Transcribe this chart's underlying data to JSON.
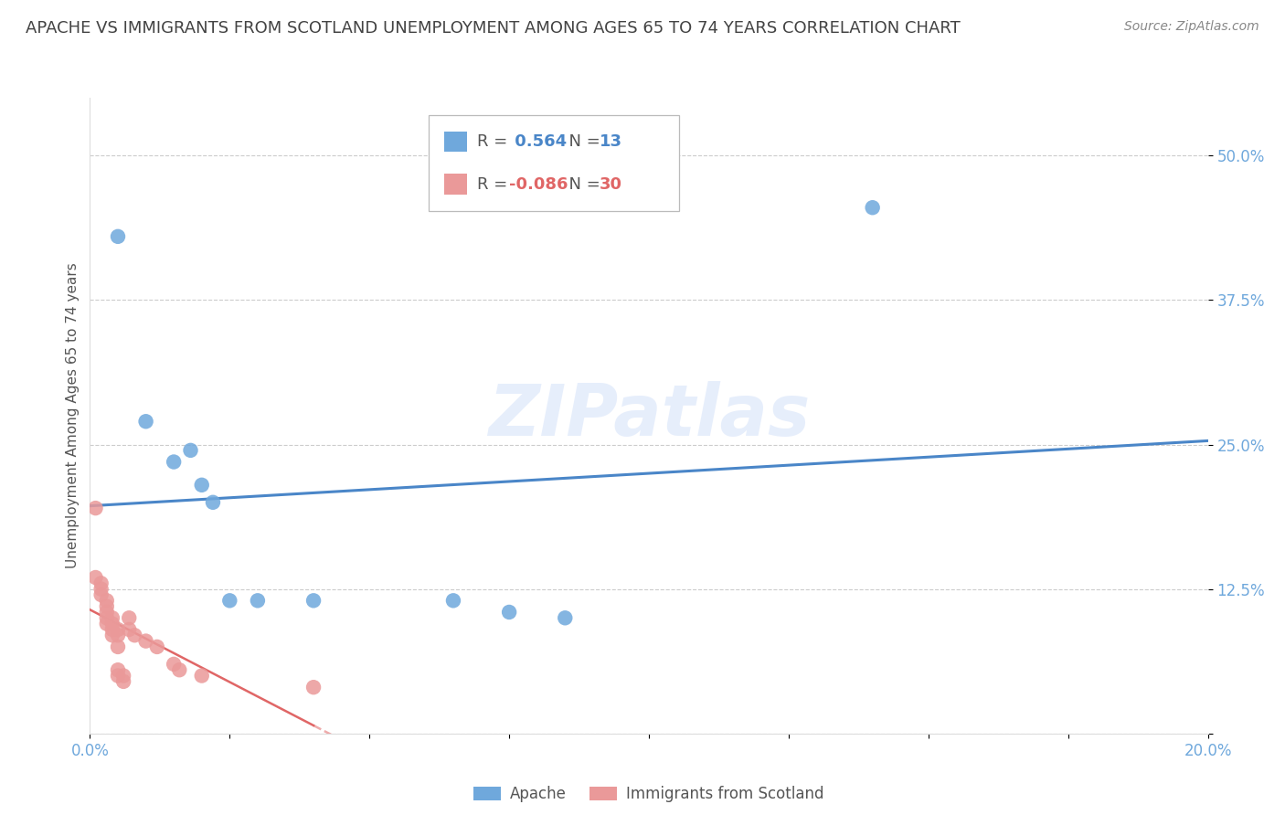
{
  "title": "APACHE VS IMMIGRANTS FROM SCOTLAND UNEMPLOYMENT AMONG AGES 65 TO 74 YEARS CORRELATION CHART",
  "source": "Source: ZipAtlas.com",
  "ylabel": "Unemployment Among Ages 65 to 74 years",
  "watermark": "ZIPatlas",
  "xlim": [
    0.0,
    0.2
  ],
  "ylim": [
    0.0,
    0.55
  ],
  "xticks": [
    0.0,
    0.025,
    0.05,
    0.075,
    0.1,
    0.125,
    0.15,
    0.175,
    0.2
  ],
  "xticklabels": [
    "0.0%",
    "",
    "",
    "",
    "",
    "",
    "",
    "",
    "20.0%"
  ],
  "yticks": [
    0.0,
    0.125,
    0.25,
    0.375,
    0.5
  ],
  "yticklabels": [
    "",
    "12.5%",
    "25.0%",
    "37.5%",
    "50.0%"
  ],
  "apache_R": 0.564,
  "apache_N": 13,
  "scotland_R": -0.086,
  "scotland_N": 30,
  "apache_color": "#6fa8dc",
  "scotland_color": "#ea9999",
  "apache_line_color": "#4a86c8",
  "scotland_line_color": "#e06666",
  "grid_color": "#cccccc",
  "title_color": "#434343",
  "axis_tick_color": "#6fa8dc",
  "bg_color": "#ffffff",
  "title_fontsize": 13,
  "label_fontsize": 11,
  "tick_fontsize": 12,
  "source_fontsize": 10,
  "legend_fontsize": 13,
  "apache_points": [
    [
      0.005,
      0.43
    ],
    [
      0.01,
      0.27
    ],
    [
      0.015,
      0.235
    ],
    [
      0.018,
      0.245
    ],
    [
      0.02,
      0.215
    ],
    [
      0.022,
      0.2
    ],
    [
      0.025,
      0.115
    ],
    [
      0.03,
      0.115
    ],
    [
      0.04,
      0.115
    ],
    [
      0.065,
      0.115
    ],
    [
      0.075,
      0.105
    ],
    [
      0.085,
      0.1
    ],
    [
      0.14,
      0.455
    ]
  ],
  "scotland_points": [
    [
      0.001,
      0.195
    ],
    [
      0.001,
      0.135
    ],
    [
      0.002,
      0.13
    ],
    [
      0.002,
      0.125
    ],
    [
      0.002,
      0.12
    ],
    [
      0.003,
      0.115
    ],
    [
      0.003,
      0.11
    ],
    [
      0.003,
      0.105
    ],
    [
      0.003,
      0.1
    ],
    [
      0.003,
      0.095
    ],
    [
      0.004,
      0.1
    ],
    [
      0.004,
      0.095
    ],
    [
      0.004,
      0.09
    ],
    [
      0.004,
      0.085
    ],
    [
      0.005,
      0.09
    ],
    [
      0.005,
      0.085
    ],
    [
      0.005,
      0.075
    ],
    [
      0.005,
      0.055
    ],
    [
      0.005,
      0.05
    ],
    [
      0.006,
      0.05
    ],
    [
      0.006,
      0.045
    ],
    [
      0.007,
      0.1
    ],
    [
      0.007,
      0.09
    ],
    [
      0.008,
      0.085
    ],
    [
      0.01,
      0.08
    ],
    [
      0.012,
      0.075
    ],
    [
      0.015,
      0.06
    ],
    [
      0.016,
      0.055
    ],
    [
      0.02,
      0.05
    ],
    [
      0.04,
      0.04
    ]
  ]
}
